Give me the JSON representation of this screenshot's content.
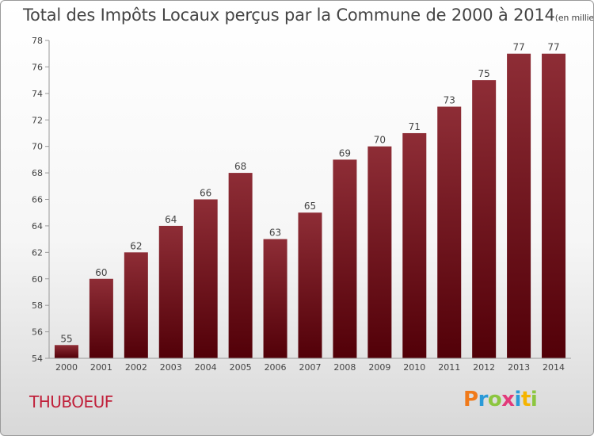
{
  "chart_data": {
    "type": "bar",
    "title": "Total des Impôts Locaux perçus par la Commune de 2000 à 2014",
    "unit": "(en milliers d'€)",
    "categories": [
      "2000",
      "2001",
      "2002",
      "2003",
      "2004",
      "2005",
      "2006",
      "2007",
      "2008",
      "2009",
      "2010",
      "2011",
      "2012",
      "2013",
      "2014"
    ],
    "values": [
      55,
      60,
      62,
      64,
      66,
      68,
      63,
      65,
      69,
      70,
      71,
      73,
      75,
      77,
      77
    ],
    "ylim": [
      54,
      78
    ],
    "yticks": [
      54,
      56,
      58,
      60,
      62,
      64,
      66,
      68,
      70,
      72,
      74,
      76,
      78
    ],
    "xlabel": "",
    "ylabel": "",
    "bar_color": "#7a1c26"
  },
  "commune": "THUBOEUF",
  "logo": [
    "P",
    "r",
    "o",
    "x",
    "i",
    "t",
    "i"
  ]
}
